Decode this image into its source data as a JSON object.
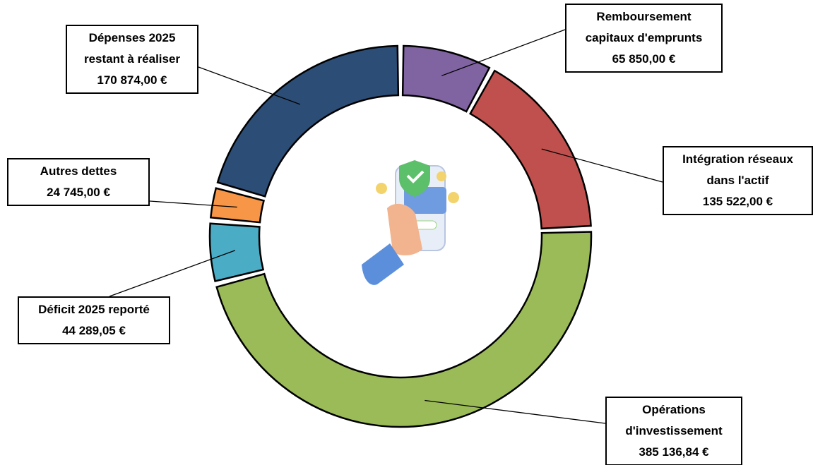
{
  "chart_data": {
    "type": "donut",
    "categories": [
      "Remboursement capitaux d'emprunts",
      "Intégration réseaux dans l'actif",
      "Opérations d'investissement",
      "Déficit 2025 reporté",
      "Autres dettes",
      "Dépenses 2025 restant à réaliser"
    ],
    "values": [
      65850.0,
      135522.0,
      385136.84,
      44289.05,
      24745.0,
      170874.0
    ],
    "value_labels": [
      "65 850,00 €",
      "135 522,00 €",
      "385 136,84 €",
      "44 289,05 €",
      "24 745,00 €",
      "170 874,00 €"
    ],
    "colors": [
      "#8064a2",
      "#c0504d",
      "#9bbb59",
      "#4bacc6",
      "#f79646",
      "#2c4d75"
    ]
  }
}
